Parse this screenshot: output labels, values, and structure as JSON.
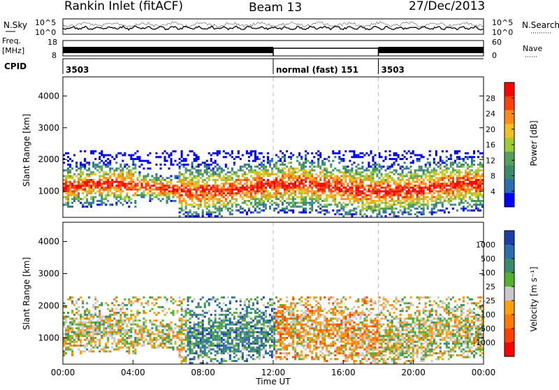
{
  "header": {
    "station": "Rankin Inlet (fitACF)",
    "beam": "Beam 13",
    "date": "27/Dec/2013"
  },
  "top_panels": {
    "nsky_label": "N.Sky",
    "nsearch_label": "N.Search",
    "noise_ticks": [
      "10^5",
      "10^0"
    ],
    "freq_label_1": "Freq.",
    "freq_label_2": "[MHz]",
    "freq_ticks": [
      "18",
      "8"
    ],
    "nave_label": "Nave",
    "nave_ticks": [
      "60",
      "0"
    ],
    "cpid_label": "CPID",
    "cpid_segments": [
      {
        "label": "3503",
        "start_hour": 0,
        "end_hour": 12
      },
      {
        "label": "normal (fast) 151",
        "start_hour": 12,
        "end_hour": 18
      },
      {
        "label": "3503",
        "start_hour": 18,
        "end_hour": 24
      }
    ]
  },
  "colors": {
    "power": [
      "#0000ff",
      "#2a6eb0",
      "#3a8a6e",
      "#55a05a",
      "#9acd32",
      "#f0c020",
      "#ff8c1a",
      "#ff4010",
      "#ff0000"
    ],
    "velocity": [
      "#1a3fa8",
      "#2a6eb0",
      "#3a8a6e",
      "#55b030",
      "#c8c8c8",
      "#ffa010",
      "#ff7a00",
      "#ff4000",
      "#ff0000"
    ]
  },
  "chart_data": [
    {
      "type": "heatmap",
      "name": "power",
      "xlabel": "",
      "ylabel": "Slant Range [km]",
      "xlim": [
        0,
        24
      ],
      "ylim": [
        180,
        4600
      ],
      "yticks": [
        "1000",
        "2000",
        "3000",
        "4000"
      ],
      "colorbar": {
        "label": "Power [dB]",
        "ticks": [
          "4",
          "8",
          "12",
          "16",
          "20",
          "24",
          "28"
        ],
        "range": [
          0,
          32
        ]
      },
      "vertical_markers_hours": [
        12,
        18
      ]
    },
    {
      "type": "heatmap",
      "name": "velocity",
      "xlabel": "Time UT",
      "ylabel": "Slant Range [km]",
      "xlim": [
        0,
        24
      ],
      "ylim": [
        180,
        4600
      ],
      "xticks": [
        "00:00",
        "04:00",
        "08:00",
        "12:00",
        "16:00",
        "20:00",
        "00:00"
      ],
      "yticks": [
        "1000",
        "2000",
        "3000",
        "4000"
      ],
      "colorbar": {
        "label": "Velocity [m s⁻¹]",
        "ticks": [
          "1000",
          "500",
          "100",
          "25",
          "-25",
          "-100",
          "-500",
          "-1000"
        ]
      },
      "vertical_markers_hours": [
        12,
        18
      ]
    }
  ]
}
